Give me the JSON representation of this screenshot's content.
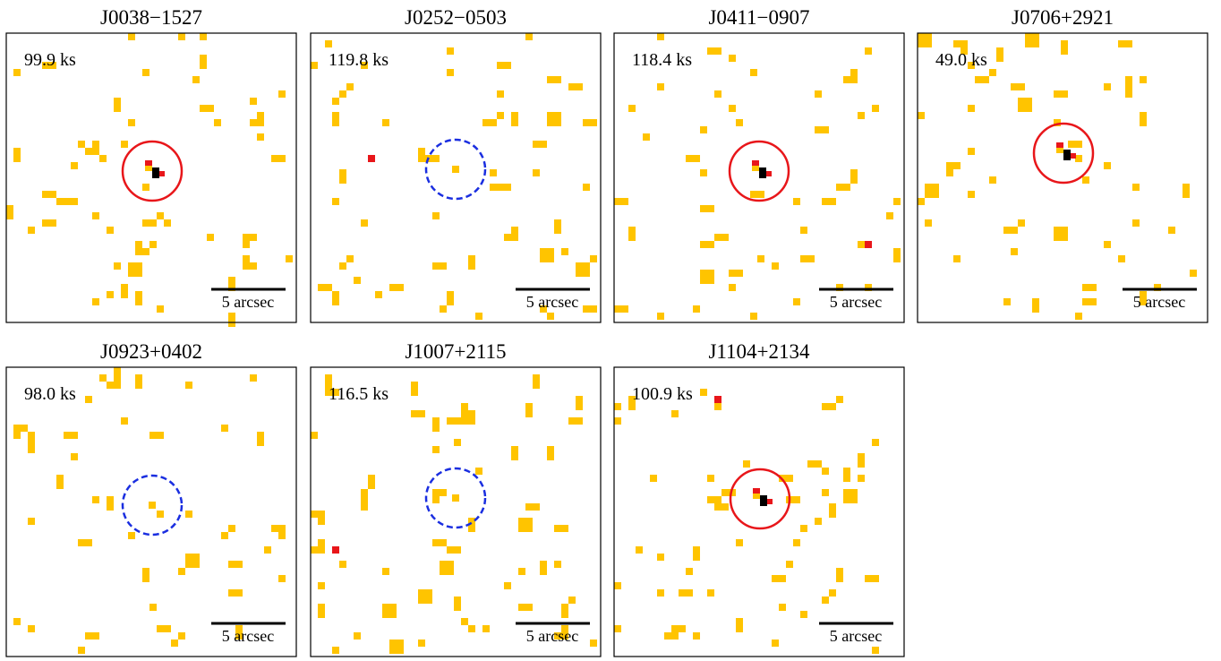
{
  "panels": [
    {
      "title": "J0038−1527",
      "exposure": "99.9 ks",
      "scale_bar": "5 arcsec",
      "detected": true
    },
    {
      "title": "J0252−0503",
      "exposure": "119.8 ks",
      "scale_bar": "5 arcsec",
      "detected": false
    },
    {
      "title": "J0411−0907",
      "exposure": "118.4 ks",
      "scale_bar": "5 arcsec",
      "detected": true
    },
    {
      "title": "J0706+2921",
      "exposure": "49.0 ks",
      "scale_bar": "5 arcsec",
      "detected": true
    },
    {
      "title": "J0923+0402",
      "exposure": "98.0 ks",
      "scale_bar": "5 arcsec",
      "detected": false
    },
    {
      "title": "J1007+2115",
      "exposure": "116.5 ks",
      "scale_bar": "5 arcsec",
      "detected": false
    },
    {
      "title": "J1104+2134",
      "exposure": "100.9 ks",
      "scale_bar": "5 arcsec",
      "detected": true
    }
  ]
}
